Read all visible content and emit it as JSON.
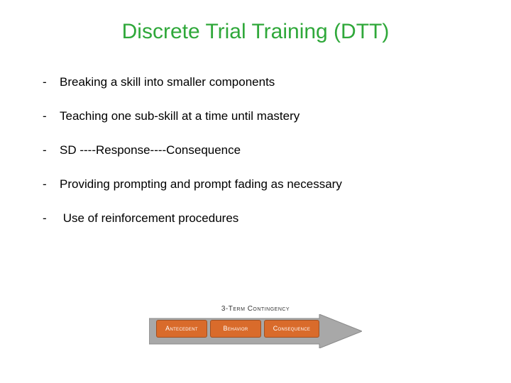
{
  "title": {
    "text": "Discrete Trial Training (DTT)",
    "color": "#2fa83a",
    "fontsize": 30
  },
  "bullets": {
    "items": [
      "Breaking a skill into smaller components",
      "Teaching one sub-skill at a time until mastery",
      "SD ----Response----Consequence",
      "Providing prompting and prompt fading as necessary",
      " Use of reinforcement procedures"
    ],
    "fontsize": 17,
    "color": "#000000"
  },
  "diagram": {
    "label": "3-Term Contingency",
    "label_fontsize": 10,
    "label_color": "#333333",
    "arrow_fill": "#a8a8a8",
    "arrow_stroke": "#8a8a8a",
    "boxes": [
      {
        "text": "Antecedent",
        "bg": "#d96b2b",
        "width": 72,
        "fontsize": 9
      },
      {
        "text": "Behavior",
        "bg": "#d96b2b",
        "width": 72,
        "fontsize": 9
      },
      {
        "text": "Consequence",
        "bg": "#d96b2b",
        "width": 78,
        "fontsize": 9
      }
    ]
  }
}
